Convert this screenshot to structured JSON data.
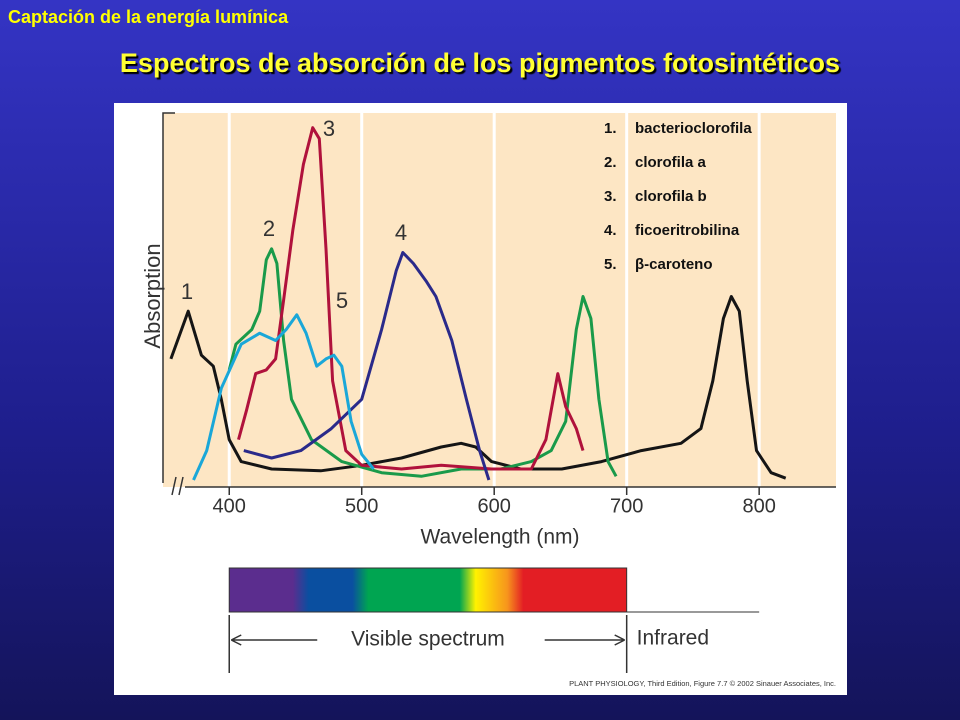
{
  "slide": {
    "header": "Captación de la energía lumínica",
    "title": "Espectros de absorción de los pigmentos fotosintéticos"
  },
  "chart_data": {
    "type": "line",
    "x_label": "Wavelength (nm)",
    "y_label": "Absorption",
    "xlim": [
      350,
      858
    ],
    "xticks": [
      400,
      500,
      600,
      700,
      800
    ],
    "ylim": [
      0,
      100
    ],
    "grid": true,
    "series": [
      {
        "name": "bacterioclorofila",
        "index_label": "1.",
        "label": "1",
        "color": "#151515",
        "x": [
          356,
          369,
          379,
          388,
          394,
          400,
          409,
          432,
          469,
          500,
          530,
          560,
          575,
          586,
          598,
          620,
          651,
          681,
          711,
          741,
          756,
          765,
          773,
          779,
          785,
          791,
          798,
          809,
          820
        ],
        "values": [
          33,
          46,
          34,
          31,
          22,
          11,
          5,
          3,
          2.5,
          4,
          6,
          9,
          10,
          9,
          5,
          3,
          3,
          5,
          8,
          10,
          14,
          27,
          44,
          50,
          46,
          27,
          8,
          2,
          0.5
        ]
      },
      {
        "name": "clorofila a",
        "index_label": "2.",
        "label": "2",
        "color": "#1a9a4a",
        "x": [
          400,
          405,
          417,
          423,
          428,
          432,
          436,
          441,
          447,
          462,
          485,
          515,
          545,
          575,
          605,
          628,
          643,
          654,
          662,
          667,
          673,
          679,
          686,
          692
        ],
        "values": [
          30,
          37,
          41,
          46,
          60,
          63,
          59,
          38,
          22,
          11,
          5,
          2,
          1,
          3,
          3,
          5,
          8,
          16,
          41,
          50,
          44,
          22,
          5,
          1
        ]
      },
      {
        "name": "clorofila b",
        "index_label": "3.",
        "label": "3",
        "color": "#b0123c",
        "x": [
          407,
          413,
          420,
          428,
          435,
          441,
          448,
          456,
          463,
          468,
          473,
          478,
          488,
          500,
          530,
          560,
          598,
          628,
          639,
          648,
          654,
          662,
          667
        ],
        "values": [
          11,
          19,
          29,
          30,
          33,
          49,
          68,
          86,
          96,
          93,
          63,
          27,
          8,
          4,
          3,
          4,
          3,
          3,
          11,
          29,
          20,
          14,
          8
        ]
      },
      {
        "name": "ficoeritrobilina",
        "index_label": "4.",
        "label": "4",
        "color": "#2a2a8a",
        "x": [
          411,
          432,
          454,
          477,
          500,
          515,
          526,
          531,
          539,
          549,
          556,
          568,
          579,
          589,
          596
        ],
        "values": [
          8,
          6,
          8,
          14,
          22,
          41,
          57,
          62,
          59,
          54,
          50,
          38,
          22,
          8,
          0
        ]
      },
      {
        "name": "β-caroteno",
        "index_label": "5.",
        "label": "5",
        "color": "#1aa7d8",
        "x": [
          373,
          383,
          394,
          409,
          423,
          435,
          443,
          451,
          458,
          466,
          473,
          479,
          485,
          492,
          500,
          509
        ],
        "values": [
          0,
          8,
          25,
          37,
          40,
          38,
          41,
          45,
          40,
          31,
          33,
          34,
          31,
          16,
          7,
          3
        ]
      }
    ],
    "spectrum_labels": {
      "visible": "Visible spectrum",
      "infrared": "Infrared"
    },
    "credit": "PLANT PHYSIOLOGY, Third Edition, Figure 7.7 © 2002 Sinauer Associates, Inc."
  }
}
